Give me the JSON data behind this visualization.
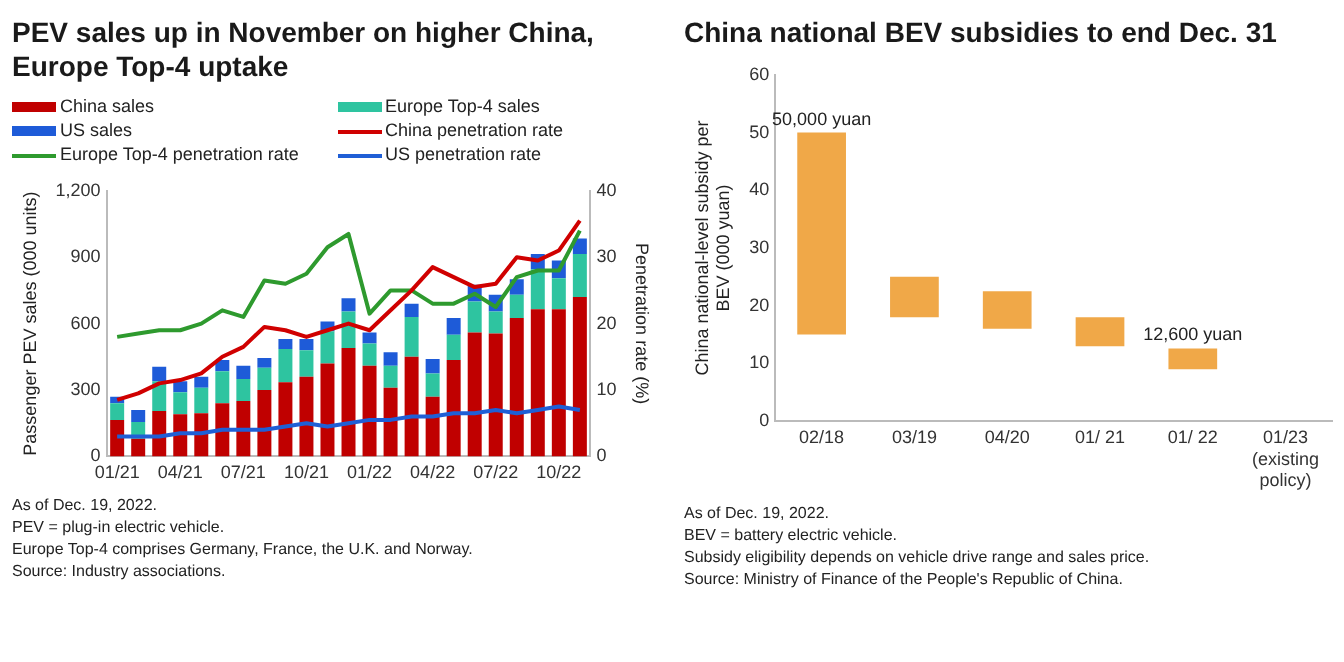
{
  "chart_data": [
    {
      "type": "bar",
      "title": "PEV sales up in November on higher China, Europe Top-4 uptake",
      "categories": [
        "01/21",
        null,
        null,
        "04/21",
        null,
        null,
        "07/21",
        null,
        null,
        "10/21",
        null,
        null,
        "01/22",
        null,
        null,
        "04/22",
        null,
        null,
        "07/22",
        null,
        null,
        "10/22",
        null
      ],
      "series": [
        {
          "name": "China sales",
          "color": "#c00000",
          "values": [
            165,
            80,
            205,
            190,
            195,
            240,
            250,
            300,
            335,
            360,
            420,
            490,
            410,
            310,
            450,
            270,
            435,
            560,
            555,
            625,
            665,
            665,
            720
          ]
        },
        {
          "name": "Europe Top-4 sales",
          "color": "#2ec4a0",
          "values": [
            75,
            75,
            135,
            100,
            115,
            145,
            100,
            100,
            150,
            120,
            145,
            165,
            100,
            100,
            180,
            105,
            115,
            140,
            100,
            105,
            180,
            140,
            195
          ]
        },
        {
          "name": "US sales",
          "color": "#1e5bd8",
          "values": [
            30,
            55,
            65,
            50,
            50,
            50,
            60,
            45,
            45,
            50,
            45,
            60,
            50,
            60,
            60,
            65,
            75,
            75,
            75,
            70,
            70,
            80,
            70
          ]
        },
        {
          "name": "China penetration rate",
          "type": "line",
          "axis": "y2",
          "color": "#d00000",
          "values": [
            8.5,
            9.5,
            11,
            11.5,
            12.5,
            15,
            16.5,
            19.5,
            19,
            18,
            19,
            20,
            19,
            22,
            25,
            28.5,
            27,
            25.5,
            26,
            30,
            29.5,
            31,
            35.5
          ]
        },
        {
          "name": "Europe Top-4 penetration rate",
          "type": "line",
          "axis": "y2",
          "color": "#2e9a2e",
          "values": [
            18,
            18.5,
            19,
            19,
            20,
            22,
            21,
            26.5,
            26,
            27.5,
            31.5,
            33.5,
            21.5,
            25,
            25,
            23,
            23,
            24.5,
            22.5,
            27,
            28,
            28,
            34
          ]
        },
        {
          "name": "US penetration rate",
          "type": "line",
          "axis": "y2",
          "color": "#1f5fd6",
          "values": [
            3,
            3,
            3,
            3.5,
            3.5,
            4,
            4,
            4,
            4.5,
            5,
            4.5,
            5,
            5.5,
            5.5,
            6,
            6,
            6.5,
            6.5,
            7,
            6.5,
            7,
            7.5,
            7
          ]
        }
      ],
      "stacked": true,
      "marker": "none",
      "grid": false,
      "legend": "top",
      "ylabel": "Passenger PEV sales (000 units)",
      "ylim": [
        0,
        1200
      ],
      "yticks": [
        0,
        300,
        600,
        900,
        {
          "value": 1200,
          "label": "1,200"
        }
      ],
      "y2label": "Penetration rate (%)",
      "y2lim": [
        0,
        40
      ],
      "y2ticks": [
        0,
        10,
        20,
        30,
        40
      ],
      "annotations": [
        "As of Dec. 19, 2022.",
        "PEV = plug-in electric vehicle.",
        "Europe Top-4 comprises Germany, France, the U.K. and Norway.",
        "Source: Industry associations."
      ]
    },
    {
      "type": "bar",
      "title": "China national BEV subsidies to end Dec. 31",
      "categories": [
        "02/18",
        "03/19",
        "04/20",
        "01/ 21",
        "01/ 22",
        "01/23 (existing policy)"
      ],
      "values": [
        35,
        7,
        6.5,
        5,
        3.6,
        null
      ],
      "base": [
        15,
        18,
        16,
        13,
        9,
        null
      ],
      "color": "#f0a848",
      "grid": false,
      "ylabel": "China national-level subsidy per BEV (000 yuan)",
      "ylim": [
        0,
        60
      ],
      "yticks": [
        0,
        10,
        20,
        30,
        40,
        50,
        60
      ],
      "annotations": [
        {
          "text": "50,000 yuan",
          "x": "02/18",
          "y": 50
        },
        {
          "text": "12,600 yuan",
          "x": "01/ 22",
          "y": 12.6
        },
        "As of Dec. 19, 2022.",
        "BEV = battery electric vehicle.",
        "Subsidy eligibility depends on vehicle drive range and sales price.",
        "Source: Ministry of Finance of the People's Republic of China."
      ]
    }
  ]
}
